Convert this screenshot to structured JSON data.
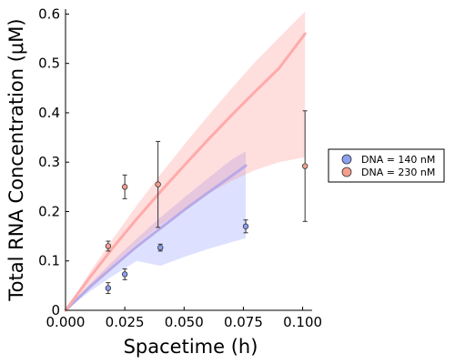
{
  "chart_data": {
    "type": "scatter",
    "xlabel": "Spacetime (h)",
    "ylabel": "Total RNA Concentration (μM)",
    "xlim": [
      0,
      0.104
    ],
    "ylim": [
      0,
      0.61
    ],
    "xticks": [
      0,
      0.025,
      0.05,
      0.075,
      0.1
    ],
    "xtick_labels": [
      "0.000",
      "0.025",
      "0.050",
      "0.075",
      "0.100"
    ],
    "yticks": [
      0,
      0.1,
      0.2,
      0.3,
      0.4,
      0.5,
      0.6
    ],
    "ytick_labels": [
      "0",
      "0.1",
      "0.2",
      "0.3",
      "0.4",
      "0.5",
      "0.6"
    ],
    "grid": false,
    "legend_position": "right",
    "series": [
      {
        "name": "DNA = 140 nM",
        "marker_color": "#8c9ff0",
        "line_color": "#b9aae6",
        "band_color": "#7a8cff",
        "points": [
          {
            "x": 0.018,
            "y": 0.045,
            "err": 0.011
          },
          {
            "x": 0.025,
            "y": 0.073,
            "err": 0.011
          },
          {
            "x": 0.04,
            "y": 0.127,
            "err": 0.007
          },
          {
            "x": 0.076,
            "y": 0.17,
            "err": 0.013
          }
        ],
        "fit_x": [
          0,
          0.01,
          0.02,
          0.03,
          0.04,
          0.05,
          0.06,
          0.07,
          0.076
        ],
        "fit_y": [
          0,
          0.046,
          0.088,
          0.129,
          0.166,
          0.203,
          0.238,
          0.272,
          0.293
        ],
        "fit_upper": [
          0,
          0.052,
          0.1,
          0.145,
          0.188,
          0.228,
          0.267,
          0.305,
          0.322
        ],
        "fit_lower": [
          0,
          0.037,
          0.07,
          0.1,
          0.09,
          0.108,
          0.124,
          0.138,
          0.146
        ]
      },
      {
        "name": "DNA = 230 nM",
        "marker_color": "#f5a090",
        "line_color": "#ffaaaa",
        "band_color": "#ff7f7f",
        "points": [
          {
            "x": 0.018,
            "y": 0.13,
            "err": 0.01
          },
          {
            "x": 0.025,
            "y": 0.25,
            "err": 0.024
          },
          {
            "x": 0.039,
            "y": 0.255,
            "err": 0.087
          },
          {
            "x": 0.101,
            "y": 0.292,
            "err": 0.112
          }
        ],
        "fit_x": [
          0,
          0.01,
          0.02,
          0.03,
          0.04,
          0.05,
          0.06,
          0.07,
          0.08,
          0.09,
          0.101
        ],
        "fit_y": [
          0,
          0.065,
          0.127,
          0.185,
          0.24,
          0.293,
          0.345,
          0.395,
          0.443,
          0.49,
          0.56
        ],
        "fit_upper": [
          0,
          0.075,
          0.145,
          0.212,
          0.275,
          0.335,
          0.393,
          0.449,
          0.503,
          0.552,
          0.605
        ],
        "fit_lower": [
          0,
          0.047,
          0.092,
          0.134,
          0.172,
          0.205,
          0.236,
          0.262,
          0.284,
          0.3,
          0.31
        ]
      }
    ]
  }
}
